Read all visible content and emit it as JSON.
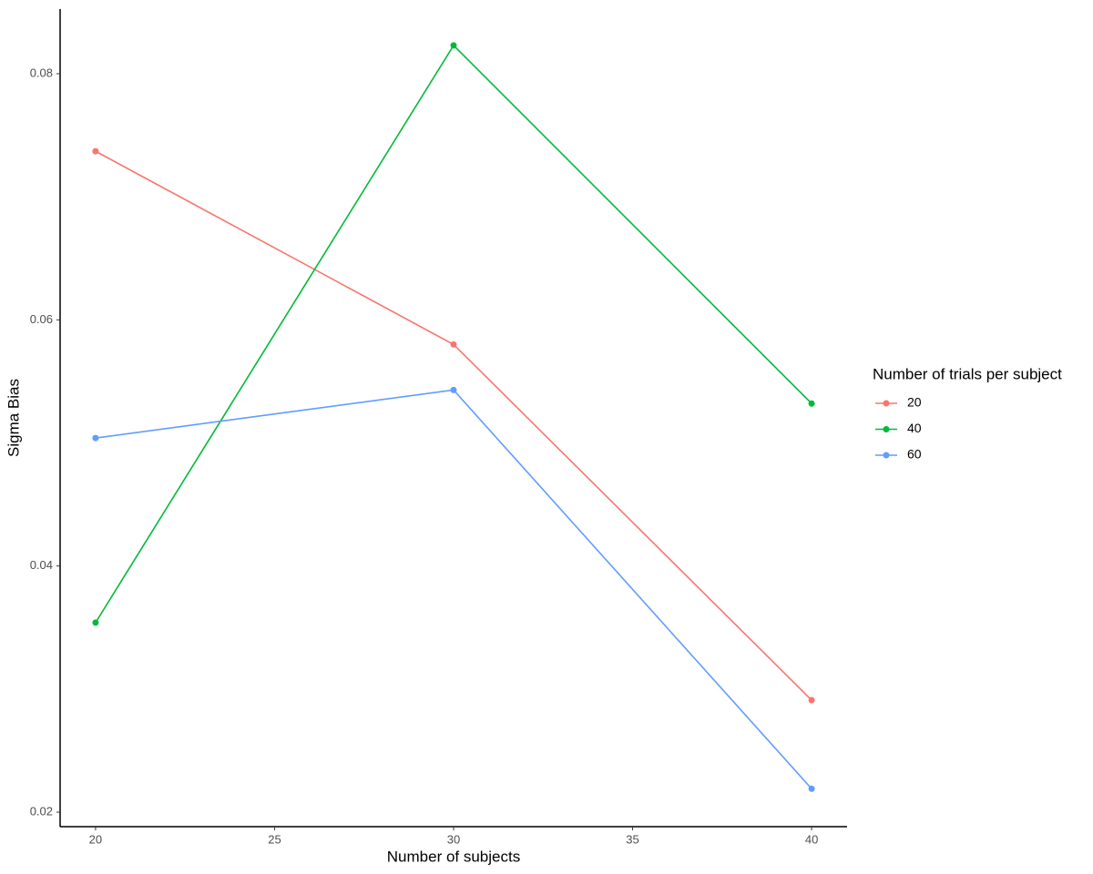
{
  "chart_data": {
    "type": "line",
    "x_label": "Number of subjects",
    "y_label": "Sigma Bias",
    "legend_title": "Number of trials per subject",
    "x": [
      20,
      30,
      40
    ],
    "series": [
      {
        "name": "20",
        "color": "#f8766d",
        "values": [
          0.0737,
          0.058,
          0.0291
        ]
      },
      {
        "name": "40",
        "color": "#00ba38",
        "values": [
          0.0354,
          0.0823,
          0.0532
        ]
      },
      {
        "name": "60",
        "color": "#619cff",
        "values": [
          0.0504,
          0.0543,
          0.0219
        ]
      }
    ],
    "xlim": [
      19.01,
      40.99
    ],
    "xticks": [
      20,
      25,
      30,
      35,
      40
    ],
    "ylim": [
      0.01882,
      0.08525
    ],
    "yticks": [
      0.02,
      0.04,
      0.06,
      0.08
    ],
    "grid": false,
    "legend_position": "right"
  }
}
